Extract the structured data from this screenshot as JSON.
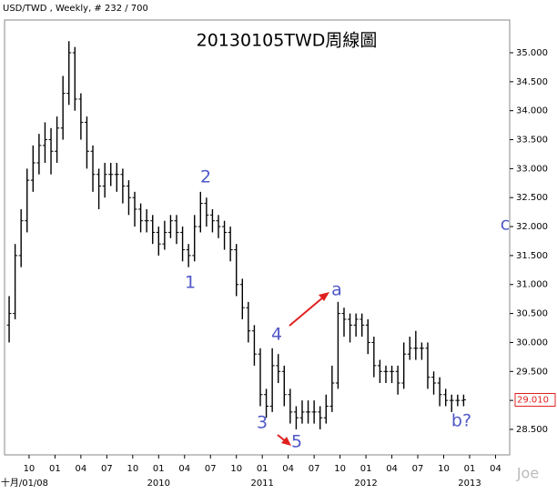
{
  "chart_data": {
    "type": "ohlc",
    "header": "USD/TWD , Weekly, # 232 / 700",
    "title": "20130105TWD周線圖",
    "watermark": "Joe",
    "x": [
      0,
      3,
      6,
      9,
      12,
      15,
      18,
      21,
      24,
      27,
      30,
      33,
      36,
      39,
      42,
      45,
      48,
      51,
      54,
      57,
      60,
      63,
      66,
      69,
      72,
      75,
      78,
      81,
      84,
      87,
      90,
      93,
      96,
      99,
      102,
      105,
      108,
      111,
      114,
      117,
      120,
      123,
      126,
      129,
      132,
      135,
      138,
      141,
      144,
      147,
      150,
      153,
      156,
      159,
      162,
      165,
      168,
      171,
      174,
      177,
      180,
      183,
      186,
      189,
      192,
      195,
      198,
      201,
      204,
      207,
      210,
      213,
      216,
      219,
      222,
      225,
      228
    ],
    "open": [
      30.3,
      30.5,
      31.5,
      32.1,
      32.8,
      33.1,
      33.4,
      33.5,
      33.3,
      33.7,
      34.3,
      35.0,
      34.2,
      33.8,
      33.3,
      32.9,
      32.7,
      32.9,
      32.9,
      32.9,
      32.7,
      32.5,
      32.3,
      32.1,
      32.1,
      31.9,
      31.7,
      31.9,
      32.1,
      31.9,
      31.6,
      31.5,
      32.0,
      32.4,
      32.2,
      32.1,
      32.0,
      31.9,
      31.6,
      31.0,
      30.6,
      30.2,
      29.8,
      29.1,
      28.9,
      29.6,
      29.5,
      29.1,
      28.8,
      28.7,
      28.8,
      28.8,
      28.8,
      28.7,
      28.9,
      29.3,
      30.5,
      30.4,
      30.3,
      30.4,
      30.3,
      30.0,
      29.6,
      29.5,
      29.5,
      29.5,
      29.3,
      29.8,
      29.9,
      29.9,
      29.9,
      29.4,
      29.3,
      29.1,
      29.0,
      29.0,
      29.0
    ],
    "high": [
      30.8,
      31.7,
      32.3,
      33.0,
      33.4,
      33.6,
      33.8,
      33.7,
      33.9,
      34.6,
      35.2,
      35.1,
      34.3,
      33.9,
      33.4,
      33.0,
      33.1,
      33.1,
      33.1,
      33.0,
      32.8,
      32.6,
      32.4,
      32.3,
      32.2,
      32.0,
      32.1,
      32.2,
      32.2,
      32.0,
      31.7,
      32.2,
      32.6,
      32.5,
      32.3,
      32.2,
      32.1,
      32.0,
      31.7,
      31.1,
      30.7,
      30.3,
      29.9,
      29.2,
      29.9,
      29.8,
      29.6,
      29.2,
      28.9,
      29.0,
      29.0,
      29.0,
      28.9,
      29.1,
      29.6,
      30.7,
      30.6,
      30.5,
      30.5,
      30.5,
      30.4,
      30.1,
      29.7,
      29.6,
      29.6,
      29.6,
      30.0,
      30.1,
      30.2,
      30.0,
      30.0,
      29.5,
      29.4,
      29.2,
      29.1,
      29.1,
      29.1
    ],
    "low": [
      30.0,
      30.4,
      31.3,
      31.9,
      32.6,
      32.9,
      33.1,
      32.9,
      33.1,
      33.5,
      34.1,
      34.0,
      33.5,
      33.0,
      32.6,
      32.3,
      32.5,
      32.7,
      32.6,
      32.4,
      32.2,
      32.0,
      31.9,
      31.9,
      31.7,
      31.5,
      31.6,
      31.8,
      31.7,
      31.4,
      31.3,
      31.4,
      31.9,
      32.0,
      31.9,
      31.8,
      31.6,
      31.4,
      30.8,
      30.4,
      30.0,
      29.6,
      28.9,
      28.7,
      28.8,
      29.3,
      28.9,
      28.6,
      28.5,
      28.6,
      28.6,
      28.6,
      28.5,
      28.6,
      28.8,
      29.2,
      30.1,
      30.0,
      30.1,
      30.1,
      29.8,
      29.4,
      29.3,
      29.3,
      29.3,
      29.1,
      29.2,
      29.7,
      29.7,
      29.7,
      29.2,
      29.1,
      28.9,
      28.9,
      28.8,
      28.9,
      28.9
    ],
    "close": [
      30.5,
      31.5,
      32.1,
      32.8,
      33.1,
      33.4,
      33.5,
      33.3,
      33.7,
      34.3,
      35.0,
      34.2,
      33.8,
      33.3,
      32.9,
      32.7,
      32.9,
      32.9,
      32.9,
      32.7,
      32.5,
      32.3,
      32.1,
      32.1,
      31.9,
      31.7,
      31.9,
      32.1,
      31.9,
      31.6,
      31.5,
      32.0,
      32.4,
      32.2,
      32.1,
      32.0,
      31.9,
      31.6,
      31.0,
      30.6,
      30.2,
      29.8,
      29.1,
      28.9,
      29.6,
      29.5,
      29.1,
      28.8,
      28.7,
      28.8,
      28.8,
      28.8,
      28.7,
      28.9,
      29.3,
      30.5,
      30.4,
      30.3,
      30.4,
      30.3,
      30.0,
      29.6,
      29.5,
      29.5,
      29.5,
      29.3,
      29.8,
      29.9,
      29.9,
      29.9,
      29.4,
      29.3,
      29.1,
      29.0,
      29.0,
      29.0,
      29.01
    ],
    "color": "#000000",
    "last_price": {
      "value": 29.01,
      "label": "29.010"
    },
    "xlim": [
      -2.3,
      251.1
    ],
    "ylim": [
      28.06,
      35.565
    ],
    "yticks": [
      {
        "value": 28.5,
        "label": "28.500"
      },
      {
        "value": 29,
        "label": "29.000"
      },
      {
        "value": 29.5,
        "label": "29.500"
      },
      {
        "value": 30,
        "label": "30.000"
      },
      {
        "value": 30.5,
        "label": "30.500"
      },
      {
        "value": 31,
        "label": "31.000"
      },
      {
        "value": 31.5,
        "label": "31.500"
      },
      {
        "value": 32,
        "label": "32.000"
      },
      {
        "value": 32.5,
        "label": "32.500"
      },
      {
        "value": 33,
        "label": "33.000"
      },
      {
        "value": 33.5,
        "label": "33.500"
      },
      {
        "value": 34,
        "label": "34.000"
      },
      {
        "value": 34.5,
        "label": "34.500"
      },
      {
        "value": 35,
        "label": "35.000"
      }
    ],
    "xticks": [
      {
        "value": 10,
        "label": "10"
      },
      {
        "value": 23,
        "label": "01"
      },
      {
        "value": 36,
        "label": "04"
      },
      {
        "value": 49,
        "label": "07"
      },
      {
        "value": 62,
        "label": "10"
      },
      {
        "value": 75,
        "label": "01"
      },
      {
        "value": 88,
        "label": "04"
      },
      {
        "value": 101,
        "label": "07"
      },
      {
        "value": 114,
        "label": "10"
      },
      {
        "value": 127,
        "label": "01"
      },
      {
        "value": 140,
        "label": "04"
      },
      {
        "value": 153,
        "label": "07"
      },
      {
        "value": 166,
        "label": "10"
      },
      {
        "value": 179,
        "label": "01"
      },
      {
        "value": 192,
        "label": "04"
      },
      {
        "value": 205,
        "label": "07"
      },
      {
        "value": 218,
        "label": "10"
      },
      {
        "value": 231,
        "label": "01"
      },
      {
        "value": 244,
        "label": "04"
      }
    ],
    "xticks_major": [
      {
        "value": 10,
        "label": "十月/01/08"
      },
      {
        "value": 75,
        "label": "2010"
      },
      {
        "value": 127,
        "label": "2011"
      },
      {
        "value": 179,
        "label": "2012"
      },
      {
        "value": 231,
        "label": "2013"
      }
    ],
    "annotations": [
      "1",
      "2",
      "3",
      "4",
      "5",
      "a",
      "b?",
      "c"
    ]
  }
}
